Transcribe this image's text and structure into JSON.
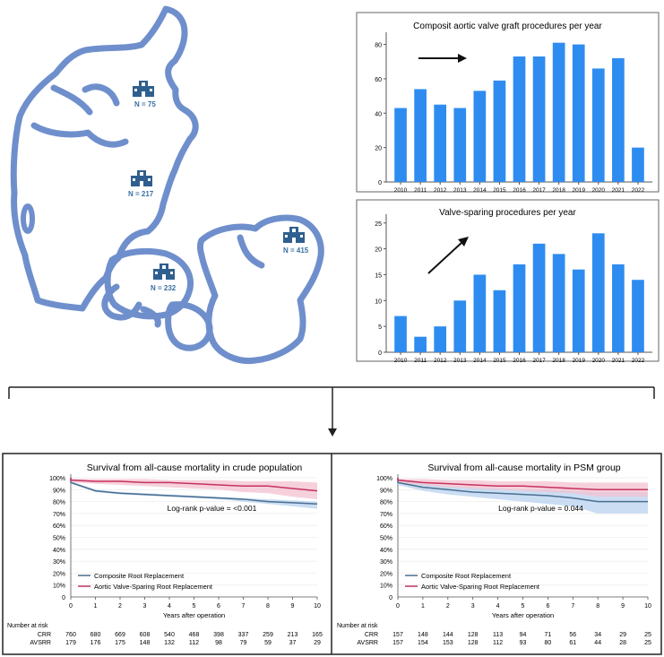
{
  "colors": {
    "bar": "#2e8cf0",
    "map_outline": "#6f8fcc",
    "hospital_icon": "#2f5f8e",
    "crr_line": "#4a6e8f",
    "crr_band": "#b8d2ef",
    "avsrr_line": "#c6325f",
    "avsrr_band": "#f3c2d0",
    "frame": "#444444"
  },
  "map": {
    "centers": [
      {
        "icon": "hospital-icon",
        "label": "N = 75"
      },
      {
        "icon": "hospital-icon",
        "label": "N = 217"
      },
      {
        "icon": "hospital-icon",
        "label": "N = 232"
      },
      {
        "icon": "hospital-icon",
        "label": "N = 415"
      }
    ]
  },
  "chart_data": [
    {
      "type": "bar",
      "title": "Composit aortic valve graft procedures per year",
      "categories": [
        "2010",
        "2011",
        "2012",
        "2013",
        "2014",
        "2015",
        "2016",
        "2017",
        "2018",
        "2019",
        "2020",
        "2021",
        "2022"
      ],
      "values": [
        43,
        54,
        45,
        43,
        53,
        59,
        73,
        73,
        81,
        80,
        66,
        72,
        20
      ],
      "ylim": [
        0,
        85
      ],
      "yticks": [
        0,
        20,
        40,
        60,
        80
      ],
      "annotation": "right-arrow"
    },
    {
      "type": "bar",
      "title": "Valve-sparing procedures per year",
      "categories": [
        "2010",
        "2011",
        "2012",
        "2013",
        "2014",
        "2015",
        "2016",
        "2017",
        "2018",
        "2019",
        "2020",
        "2021",
        "2022"
      ],
      "values": [
        7,
        3,
        5,
        10,
        15,
        12,
        17,
        21,
        19,
        16,
        23,
        17,
        14
      ],
      "ylim": [
        0,
        26
      ],
      "yticks": [
        0,
        5,
        10,
        15,
        20,
        25
      ],
      "annotation": "up-right-arrow"
    },
    {
      "type": "line",
      "title": "Survival from all-cause mortality in crude population",
      "xlabel": "Years after operation",
      "x": [
        0,
        1,
        2,
        3,
        4,
        5,
        6,
        7,
        8,
        9,
        10
      ],
      "xticks": [
        "0",
        "1",
        "2",
        "3",
        "4",
        "5",
        "6",
        "7",
        "8",
        "9",
        "10"
      ],
      "ylim": [
        0,
        100
      ],
      "yticks": [
        "0",
        "10%",
        "20%",
        "30%",
        "40%",
        "50%",
        "60%",
        "70%",
        "80%",
        "90%",
        "100%"
      ],
      "annotation": "Log-rank p-value = <0.001",
      "series": [
        {
          "name": "Composite Root Replacement",
          "key": "CRR",
          "values": [
            96,
            89,
            87,
            86,
            85,
            84,
            83,
            82,
            80,
            79,
            78
          ],
          "lower": [
            95,
            88,
            86,
            85,
            84,
            83,
            82,
            80,
            78,
            76,
            74
          ],
          "upper": [
            97,
            90,
            88,
            87,
            86,
            85,
            84,
            83,
            82,
            81,
            80
          ]
        },
        {
          "name": "Aortic Valve-Sparing Root Replacement",
          "key": "AVSRR",
          "values": [
            98,
            97,
            97,
            96,
            96,
            95,
            94,
            93,
            93,
            91,
            89
          ],
          "lower": [
            96,
            95,
            94,
            93,
            92,
            91,
            90,
            88,
            87,
            84,
            82
          ],
          "upper": [
            99,
            99,
            99,
            99,
            98,
            98,
            98,
            97,
            97,
            97,
            96
          ]
        }
      ],
      "risk_table": {
        "title": "Number at risk",
        "rows": [
          {
            "label": "CRR",
            "values": [
              "760",
              "680",
              "669",
              "608",
              "540",
              "468",
              "398",
              "337",
              "259",
              "213",
              "165"
            ]
          },
          {
            "label": "AVSRR",
            "values": [
              "179",
              "176",
              "175",
              "148",
              "132",
              "112",
              "98",
              "79",
              "59",
              "37",
              "29"
            ]
          }
        ]
      }
    },
    {
      "type": "line",
      "title": "Survival from all-cause mortality in PSM group",
      "xlabel": "Years after operation",
      "x": [
        0,
        1,
        2,
        3,
        4,
        5,
        6,
        7,
        8,
        9,
        10
      ],
      "xticks": [
        "0",
        "1",
        "2",
        "3",
        "4",
        "5",
        "6",
        "7",
        "8",
        "9",
        "10"
      ],
      "ylim": [
        0,
        100
      ],
      "yticks": [
        "0",
        "10%",
        "20%",
        "30%",
        "40%",
        "50%",
        "60%",
        "70%",
        "80%",
        "90%",
        "100%"
      ],
      "annotation": "Log-rank p-value = 0.044",
      "series": [
        {
          "name": "Composite Root Replacement",
          "key": "CRR",
          "values": [
            96,
            92,
            90,
            88,
            87,
            86,
            85,
            83,
            80,
            80,
            80
          ],
          "lower": [
            94,
            89,
            86,
            84,
            82,
            80,
            78,
            76,
            70,
            70,
            70
          ],
          "upper": [
            98,
            95,
            93,
            92,
            91,
            90,
            90,
            89,
            88,
            88,
            88
          ]
        },
        {
          "name": "Aortic Valve-Sparing Root Replacement",
          "key": "AVSRR",
          "values": [
            98,
            96,
            95,
            94,
            93,
            93,
            92,
            91,
            90,
            90,
            90
          ],
          "lower": [
            96,
            94,
            92,
            91,
            90,
            89,
            88,
            87,
            84,
            84,
            84
          ],
          "upper": [
            99,
            99,
            98,
            98,
            97,
            97,
            97,
            96,
            96,
            96,
            96
          ]
        }
      ],
      "risk_table": {
        "title": "Number at risk",
        "rows": [
          {
            "label": "CRR",
            "values": [
              "157",
              "148",
              "144",
              "128",
              "113",
              "94",
              "71",
              "56",
              "34",
              "29",
              "25"
            ]
          },
          {
            "label": "AVSRR",
            "values": [
              "157",
              "154",
              "153",
              "128",
              "112",
              "93",
              "80",
              "61",
              "44",
              "28",
              "25"
            ]
          }
        ]
      }
    }
  ]
}
